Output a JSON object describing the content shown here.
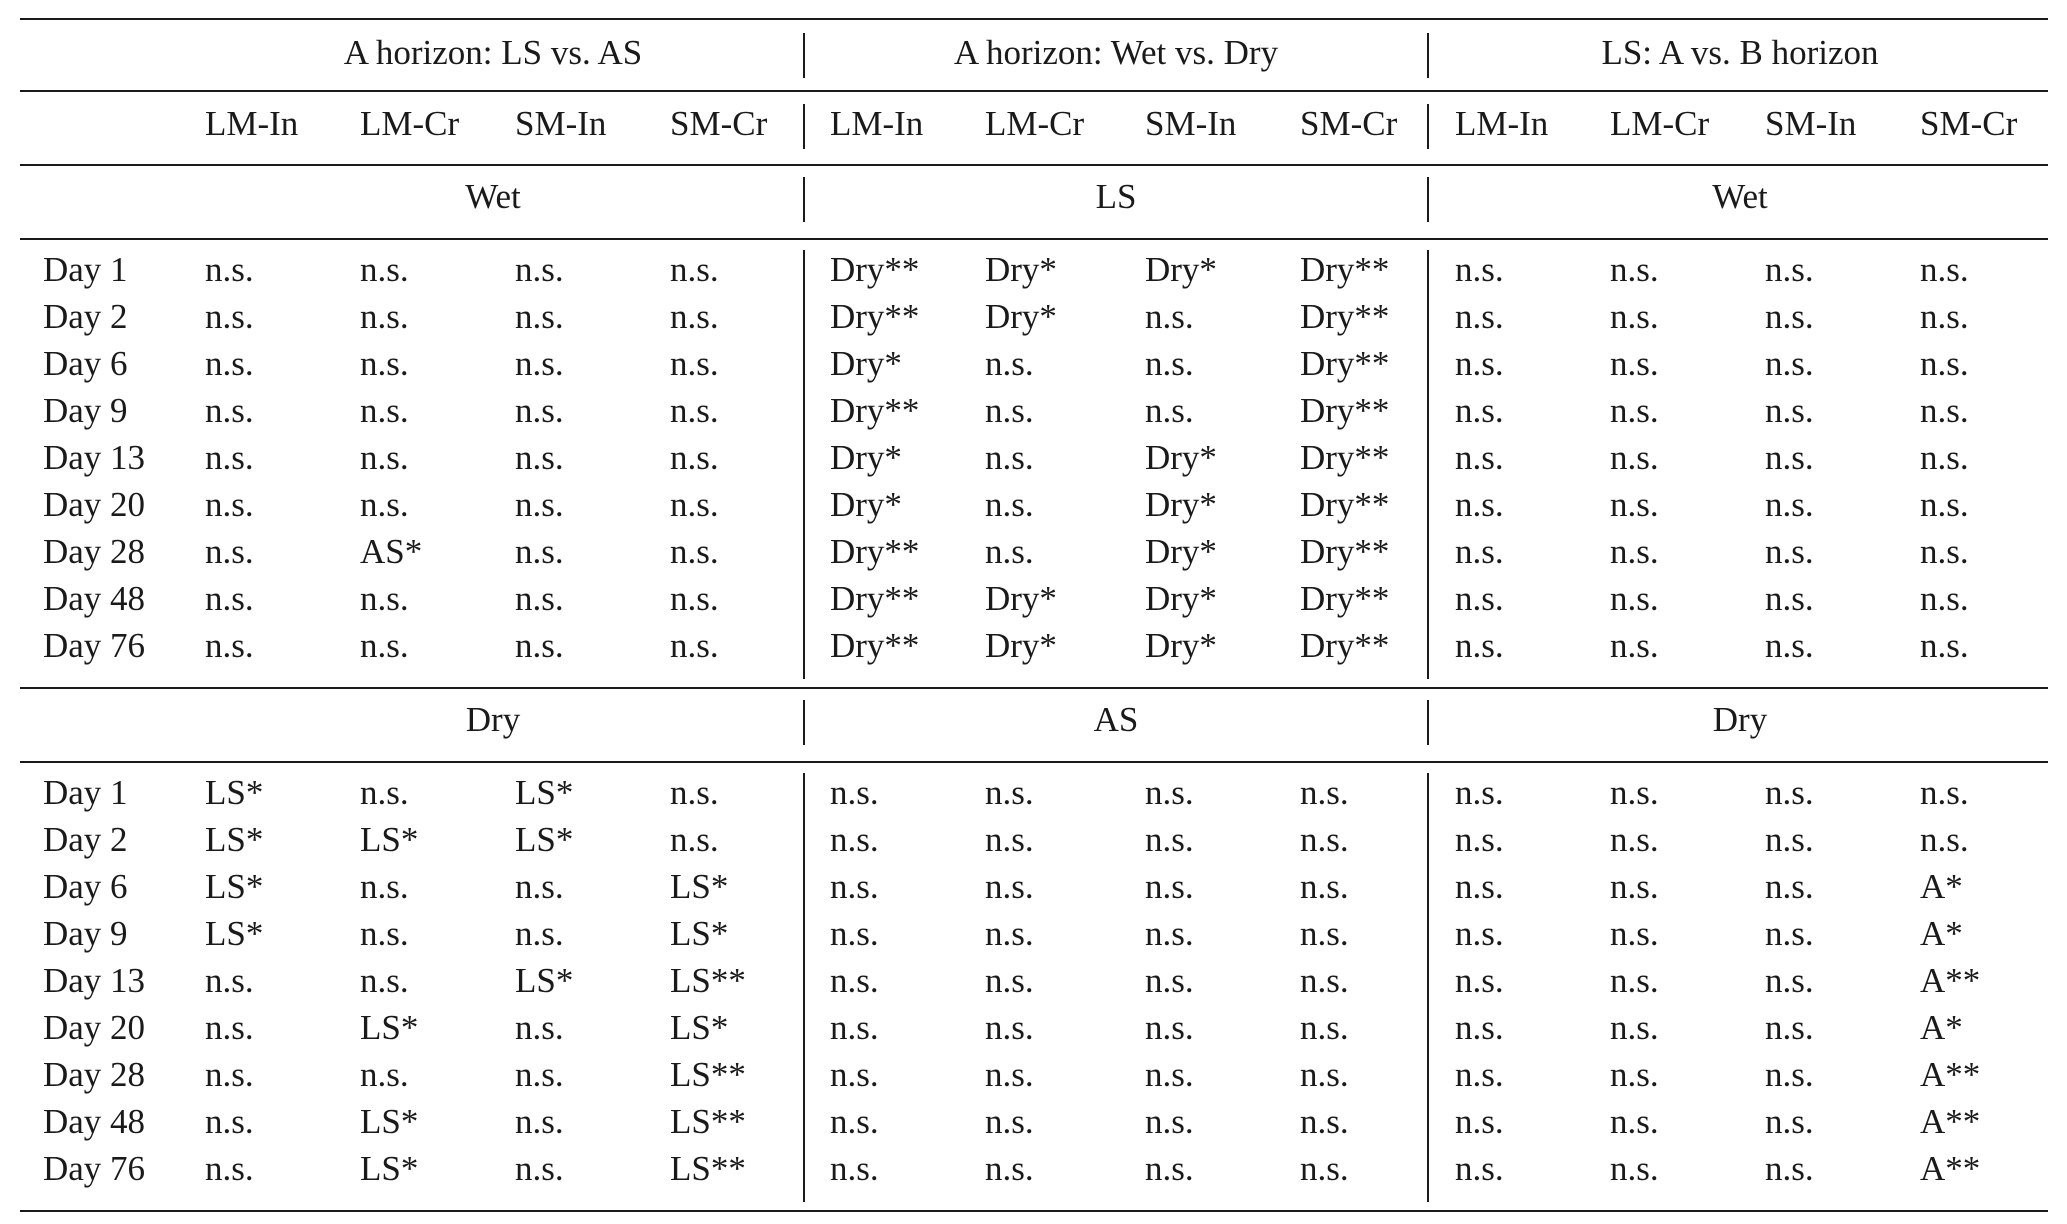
{
  "groups": [
    "A horizon: LS vs. AS",
    "A horizon: Wet vs. Dry",
    "LS: A vs. B horizon"
  ],
  "columns": [
    [
      "LM-In",
      "LM-Cr",
      "SM-In",
      "SM-Cr"
    ],
    [
      "LM-In",
      "LM-Cr",
      "SM-In",
      "SM-Cr"
    ],
    [
      "LM-In",
      "LM-Cr",
      "SM-In",
      "SM-Cr"
    ]
  ],
  "sections": [
    {
      "labels": [
        "Wet",
        "LS",
        "Wet"
      ],
      "rows": [
        {
          "day": "Day 1",
          "cells": [
            "n.s.",
            "n.s.",
            "n.s.",
            "n.s.",
            "Dry**",
            "Dry*",
            "Dry*",
            "Dry**",
            "n.s.",
            "n.s.",
            "n.s.",
            "n.s."
          ]
        },
        {
          "day": "Day 2",
          "cells": [
            "n.s.",
            "n.s.",
            "n.s.",
            "n.s.",
            "Dry**",
            "Dry*",
            "n.s.",
            "Dry**",
            "n.s.",
            "n.s.",
            "n.s.",
            "n.s."
          ]
        },
        {
          "day": "Day 6",
          "cells": [
            "n.s.",
            "n.s.",
            "n.s.",
            "n.s.",
            "Dry*",
            "n.s.",
            "n.s.",
            "Dry**",
            "n.s.",
            "n.s.",
            "n.s.",
            "n.s."
          ]
        },
        {
          "day": "Day 9",
          "cells": [
            "n.s.",
            "n.s.",
            "n.s.",
            "n.s.",
            "Dry**",
            "n.s.",
            "n.s.",
            "Dry**",
            "n.s.",
            "n.s.",
            "n.s.",
            "n.s."
          ]
        },
        {
          "day": "Day 13",
          "cells": [
            "n.s.",
            "n.s.",
            "n.s.",
            "n.s.",
            "Dry*",
            "n.s.",
            "Dry*",
            "Dry**",
            "n.s.",
            "n.s.",
            "n.s.",
            "n.s."
          ]
        },
        {
          "day": "Day 20",
          "cells": [
            "n.s.",
            "n.s.",
            "n.s.",
            "n.s.",
            "Dry*",
            "n.s.",
            "Dry*",
            "Dry**",
            "n.s.",
            "n.s.",
            "n.s.",
            "n.s."
          ]
        },
        {
          "day": "Day 28",
          "cells": [
            "n.s.",
            "AS*",
            "n.s.",
            "n.s.",
            "Dry**",
            "n.s.",
            "Dry*",
            "Dry**",
            "n.s.",
            "n.s.",
            "n.s.",
            "n.s."
          ]
        },
        {
          "day": "Day 48",
          "cells": [
            "n.s.",
            "n.s.",
            "n.s.",
            "n.s.",
            "Dry**",
            "Dry*",
            "Dry*",
            "Dry**",
            "n.s.",
            "n.s.",
            "n.s.",
            "n.s."
          ]
        },
        {
          "day": "Day 76",
          "cells": [
            "n.s.",
            "n.s.",
            "n.s.",
            "n.s.",
            "Dry**",
            "Dry*",
            "Dry*",
            "Dry**",
            "n.s.",
            "n.s.",
            "n.s.",
            "n.s."
          ]
        }
      ]
    },
    {
      "labels": [
        "Dry",
        "AS",
        "Dry"
      ],
      "rows": [
        {
          "day": "Day 1",
          "cells": [
            "LS*",
            "n.s.",
            "LS*",
            "n.s.",
            "n.s.",
            "n.s.",
            "n.s.",
            "n.s.",
            "n.s.",
            "n.s.",
            "n.s.",
            "n.s."
          ]
        },
        {
          "day": "Day 2",
          "cells": [
            "LS*",
            "LS*",
            "LS*",
            "n.s.",
            "n.s.",
            "n.s.",
            "n.s.",
            "n.s.",
            "n.s.",
            "n.s.",
            "n.s.",
            "n.s."
          ]
        },
        {
          "day": "Day 6",
          "cells": [
            "LS*",
            "n.s.",
            "n.s.",
            "LS*",
            "n.s.",
            "n.s.",
            "n.s.",
            "n.s.",
            "n.s.",
            "n.s.",
            "n.s.",
            "A*"
          ]
        },
        {
          "day": "Day 9",
          "cells": [
            "LS*",
            "n.s.",
            "n.s.",
            "LS*",
            "n.s.",
            "n.s.",
            "n.s.",
            "n.s.",
            "n.s.",
            "n.s.",
            "n.s.",
            "A*"
          ]
        },
        {
          "day": "Day 13",
          "cells": [
            "n.s.",
            "n.s.",
            "LS*",
            "LS**",
            "n.s.",
            "n.s.",
            "n.s.",
            "n.s.",
            "n.s.",
            "n.s.",
            "n.s.",
            "A**"
          ]
        },
        {
          "day": "Day 20",
          "cells": [
            "n.s.",
            "LS*",
            "n.s.",
            "LS*",
            "n.s.",
            "n.s.",
            "n.s.",
            "n.s.",
            "n.s.",
            "n.s.",
            "n.s.",
            "A*"
          ]
        },
        {
          "day": "Day 28",
          "cells": [
            "n.s.",
            "n.s.",
            "n.s.",
            "LS**",
            "n.s.",
            "n.s.",
            "n.s.",
            "n.s.",
            "n.s.",
            "n.s.",
            "n.s.",
            "A**"
          ]
        },
        {
          "day": "Day 48",
          "cells": [
            "n.s.",
            "LS*",
            "n.s.",
            "LS**",
            "n.s.",
            "n.s.",
            "n.s.",
            "n.s.",
            "n.s.",
            "n.s.",
            "n.s.",
            "A**"
          ]
        },
        {
          "day": "Day 76",
          "cells": [
            "n.s.",
            "LS*",
            "n.s.",
            "LS**",
            "n.s.",
            "n.s.",
            "n.s.",
            "n.s.",
            "n.s.",
            "n.s.",
            "n.s.",
            "A**"
          ]
        }
      ]
    }
  ]
}
